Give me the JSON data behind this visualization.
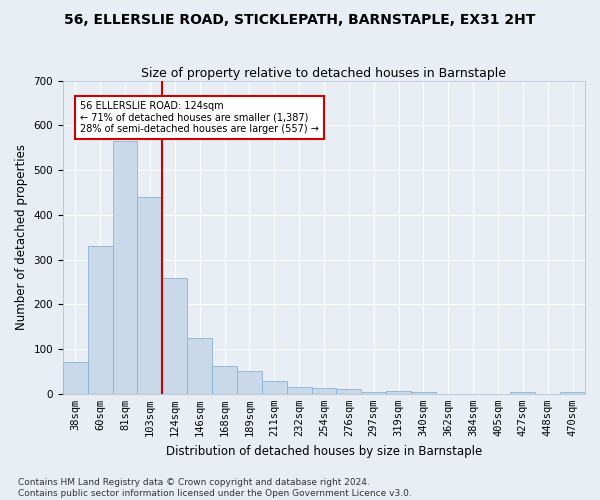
{
  "title": "56, ELLERSLIE ROAD, STICKLEPATH, BARNSTAPLE, EX31 2HT",
  "subtitle": "Size of property relative to detached houses in Barnstaple",
  "xlabel": "Distribution of detached houses by size in Barnstaple",
  "ylabel": "Number of detached properties",
  "categories": [
    "38sqm",
    "60sqm",
    "81sqm",
    "103sqm",
    "124sqm",
    "146sqm",
    "168sqm",
    "189sqm",
    "211sqm",
    "232sqm",
    "254sqm",
    "276sqm",
    "297sqm",
    "319sqm",
    "340sqm",
    "362sqm",
    "384sqm",
    "405sqm",
    "427sqm",
    "448sqm",
    "470sqm"
  ],
  "values": [
    70,
    330,
    565,
    440,
    258,
    125,
    63,
    52,
    28,
    15,
    12,
    11,
    5,
    6,
    5,
    0,
    0,
    0,
    5,
    0,
    5
  ],
  "bar_color": "#c9d9ea",
  "bar_edge_color": "#8ab4d4",
  "vline_color": "#cc0000",
  "annotation_text": "56 ELLERSLIE ROAD: 124sqm\n← 71% of detached houses are smaller (1,387)\n28% of semi-detached houses are larger (557) →",
  "annotation_box_color": "white",
  "annotation_box_edge_color": "#cc0000",
  "footer": "Contains HM Land Registry data © Crown copyright and database right 2024.\nContains public sector information licensed under the Open Government Licence v3.0.",
  "ylim": [
    0,
    700
  ],
  "bg_color": "#e8eef4",
  "plot_bg_color": "#e8eef4",
  "grid_color": "white",
  "title_fontsize": 10,
  "subtitle_fontsize": 9,
  "axis_label_fontsize": 8.5,
  "tick_fontsize": 7.5,
  "footer_fontsize": 6.5
}
